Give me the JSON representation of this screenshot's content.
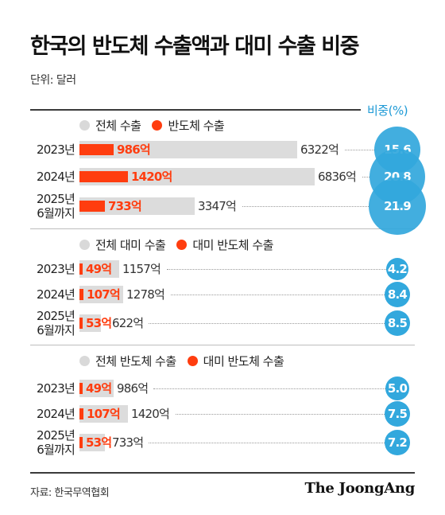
{
  "title": "한국의 반도체 수출액과 대미 수출 비중",
  "unit": "단위: 달러",
  "ratio_header": "비중(%)",
  "source": "자료: 한국무역협회",
  "logo": "The JoongAng",
  "colors": {
    "accent_red": "#ff3d0f",
    "bar_gray": "#dcdcdc",
    "bubble_blue": "#32a8dd"
  },
  "chart_data": [
    {
      "type": "bar",
      "legend": [
        "전체 수출",
        "반도체 수출"
      ],
      "categories": [
        "2023년",
        "2024년",
        "2025년 6월까지"
      ],
      "series": [
        {
          "name": "전체 수출",
          "values": [
            6322,
            6836,
            3347
          ],
          "labels": [
            "6322억",
            "6836억",
            "3347억"
          ]
        },
        {
          "name": "반도체 수출",
          "values": [
            986,
            1420,
            733
          ],
          "labels": [
            "986억",
            "1420억",
            "733억"
          ]
        }
      ],
      "ratio": {
        "values": [
          15.6,
          20.8,
          21.9
        ],
        "labels": [
          "15.6",
          "20.8",
          "21.9"
        ]
      }
    },
    {
      "type": "bar",
      "legend": [
        "전체 대미 수출",
        "대미 반도체 수출"
      ],
      "categories": [
        "2023년",
        "2024년",
        "2025년 6월까지"
      ],
      "series": [
        {
          "name": "전체 대미 수출",
          "values": [
            1157,
            1278,
            622
          ],
          "labels": [
            "1157억",
            "1278억",
            "622억"
          ]
        },
        {
          "name": "대미 반도체 수출",
          "values": [
            49,
            107,
            53
          ],
          "labels": [
            "49억",
            "107억",
            "53억"
          ]
        }
      ],
      "ratio": {
        "values": [
          4.2,
          8.4,
          8.5
        ],
        "labels": [
          "4.2",
          "8.4",
          "8.5"
        ]
      }
    },
    {
      "type": "bar",
      "legend": [
        "전체 반도체 수출",
        "대미 반도체 수출"
      ],
      "categories": [
        "2023년",
        "2024년",
        "2025년 6월까지"
      ],
      "series": [
        {
          "name": "전체 반도체 수출",
          "values": [
            986,
            1420,
            733
          ],
          "labels": [
            "986억",
            "1420억",
            "733억"
          ]
        },
        {
          "name": "대미 반도체 수출",
          "values": [
            49,
            107,
            53
          ],
          "labels": [
            "49억",
            "107억",
            "53억"
          ]
        }
      ],
      "ratio": {
        "values": [
          5.0,
          7.5,
          7.2
        ],
        "labels": [
          "5.0",
          "7.5",
          "7.2"
        ]
      }
    }
  ]
}
